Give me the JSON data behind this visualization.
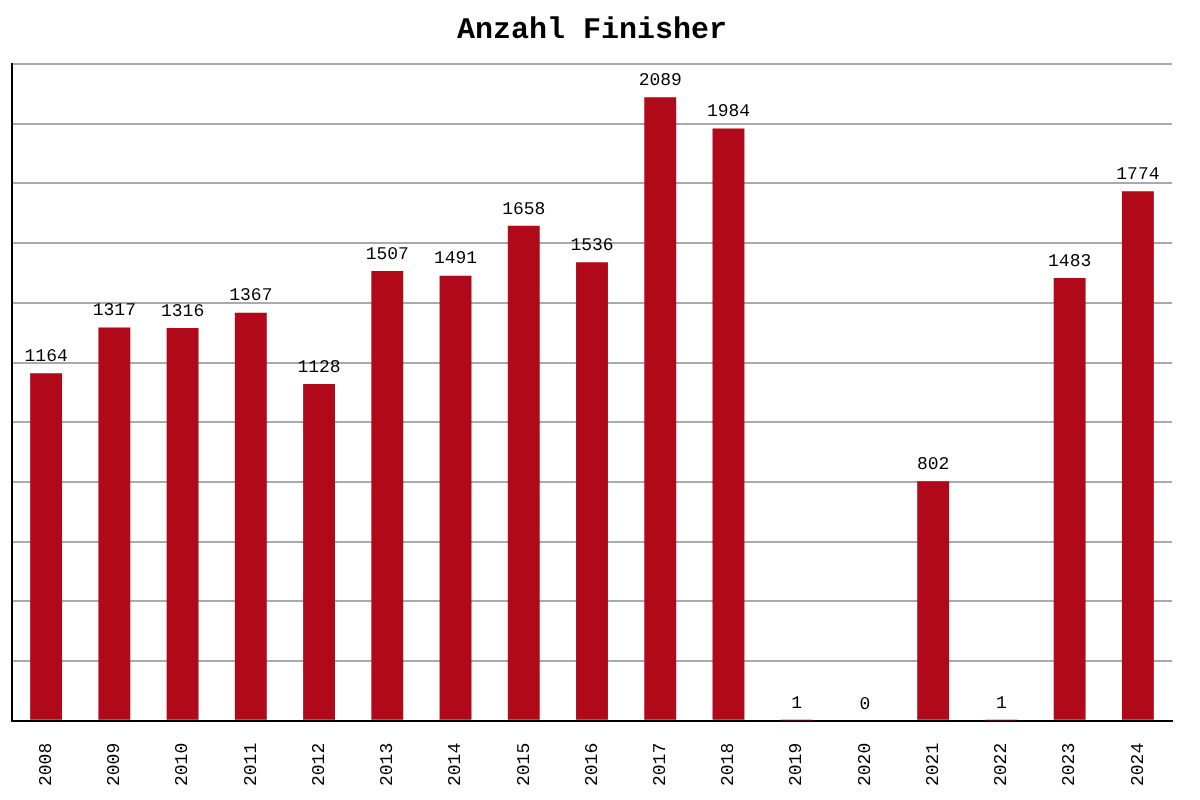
{
  "chart_data": {
    "type": "bar",
    "title": "Anzahl Finisher",
    "categories": [
      "2008",
      "2009",
      "2010",
      "2011",
      "2012",
      "2013",
      "2014",
      "2015",
      "2016",
      "2017",
      "2018",
      "2019",
      "2020",
      "2021",
      "2022",
      "2023",
      "2024"
    ],
    "values": [
      1164,
      1317,
      1316,
      1367,
      1128,
      1507,
      1491,
      1658,
      1536,
      2089,
      1984,
      1,
      0,
      802,
      1,
      1483,
      1774
    ],
    "color": "#b00a1a",
    "ylim": [
      0,
      2200
    ],
    "yticks": [
      {
        "value": 0,
        "label": null
      },
      {
        "value": 200,
        "label": null
      },
      {
        "value": 400,
        "label": null
      },
      {
        "value": 600,
        "label": null
      },
      {
        "value": 800,
        "label": null
      },
      {
        "value": 1000,
        "label": null
      },
      {
        "value": 1200,
        "label": null
      },
      {
        "value": 1400,
        "label": null
      },
      {
        "value": 1600,
        "label": null
      },
      {
        "value": 1800,
        "label": null
      },
      {
        "value": 2000,
        "label": null
      },
      {
        "value": 2200,
        "label": null
      }
    ],
    "tick_labels": "x",
    "grid": "y",
    "data_labels": true,
    "legend": false
  }
}
